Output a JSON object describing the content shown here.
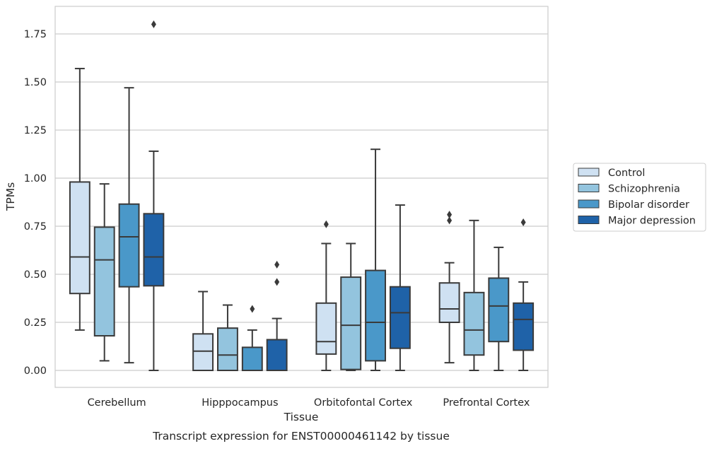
{
  "chart_data": {
    "type": "boxplot",
    "title": "",
    "xlabel": "Tissue",
    "ylabel": "TPMs",
    "caption": "Transcript expression for ENST00000461142 by tissue",
    "ylim": [
      -0.09,
      1.89
    ],
    "yticks": [
      0.0,
      0.25,
      0.5,
      0.75,
      1.0,
      1.25,
      1.5,
      1.75
    ],
    "ytick_labels": [
      "0.00",
      "0.25",
      "0.50",
      "0.75",
      "1.00",
      "1.25",
      "1.50",
      "1.75"
    ],
    "grid": "horizontal",
    "legend_position": "right",
    "categories": [
      "Cerebellum",
      "Hipppocampus",
      "Orbitofontal Cortex",
      "Prefrontal Cortex"
    ],
    "series": [
      {
        "name": "Control",
        "color": "#cfe1f2",
        "boxes": [
          {
            "whislo": 0.21,
            "q1": 0.4,
            "med": 0.59,
            "q3": 0.98,
            "whishi": 1.57,
            "fliers": []
          },
          {
            "whislo": 0.0,
            "q1": 0.0,
            "med": 0.1,
            "q3": 0.19,
            "whishi": 0.41,
            "fliers": []
          },
          {
            "whislo": 0.0,
            "q1": 0.085,
            "med": 0.15,
            "q3": 0.35,
            "whishi": 0.66,
            "fliers": [
              0.76
            ]
          },
          {
            "whislo": 0.04,
            "q1": 0.25,
            "med": 0.32,
            "q3": 0.455,
            "whishi": 0.56,
            "fliers": [
              0.78,
              0.81
            ]
          }
        ]
      },
      {
        "name": "Schizophrenia",
        "color": "#93c4de",
        "boxes": [
          {
            "whislo": 0.05,
            "q1": 0.18,
            "med": 0.575,
            "q3": 0.745,
            "whishi": 0.97,
            "fliers": []
          },
          {
            "whislo": 0.0,
            "q1": 0.0,
            "med": 0.08,
            "q3": 0.22,
            "whishi": 0.34,
            "fliers": []
          },
          {
            "whislo": 0.0,
            "q1": 0.005,
            "med": 0.235,
            "q3": 0.485,
            "whishi": 0.66,
            "fliers": []
          },
          {
            "whislo": 0.0,
            "q1": 0.08,
            "med": 0.21,
            "q3": 0.405,
            "whishi": 0.78,
            "fliers": []
          }
        ]
      },
      {
        "name": "Bipolar disorder",
        "color": "#4a98c9",
        "boxes": [
          {
            "whislo": 0.04,
            "q1": 0.435,
            "med": 0.695,
            "q3": 0.865,
            "whishi": 1.47,
            "fliers": []
          },
          {
            "whislo": 0.0,
            "q1": 0.0,
            "med": 0.0,
            "q3": 0.12,
            "whishi": 0.21,
            "fliers": [
              0.32
            ]
          },
          {
            "whislo": 0.0,
            "q1": 0.05,
            "med": 0.25,
            "q3": 0.52,
            "whishi": 1.15,
            "fliers": []
          },
          {
            "whislo": 0.0,
            "q1": 0.15,
            "med": 0.335,
            "q3": 0.48,
            "whishi": 0.64,
            "fliers": []
          }
        ]
      },
      {
        "name": "Major depression",
        "color": "#1f62a8",
        "boxes": [
          {
            "whislo": 0.0,
            "q1": 0.44,
            "med": 0.59,
            "q3": 0.815,
            "whishi": 1.14,
            "fliers": [
              1.8
            ]
          },
          {
            "whislo": 0.0,
            "q1": 0.0,
            "med": 0.0,
            "q3": 0.16,
            "whishi": 0.27,
            "fliers": [
              0.46,
              0.55
            ]
          },
          {
            "whislo": 0.0,
            "q1": 0.115,
            "med": 0.3,
            "q3": 0.435,
            "whishi": 0.86,
            "fliers": []
          },
          {
            "whislo": 0.0,
            "q1": 0.105,
            "med": 0.265,
            "q3": 0.35,
            "whishi": 0.46,
            "fliers": [
              0.77
            ]
          }
        ]
      }
    ]
  }
}
